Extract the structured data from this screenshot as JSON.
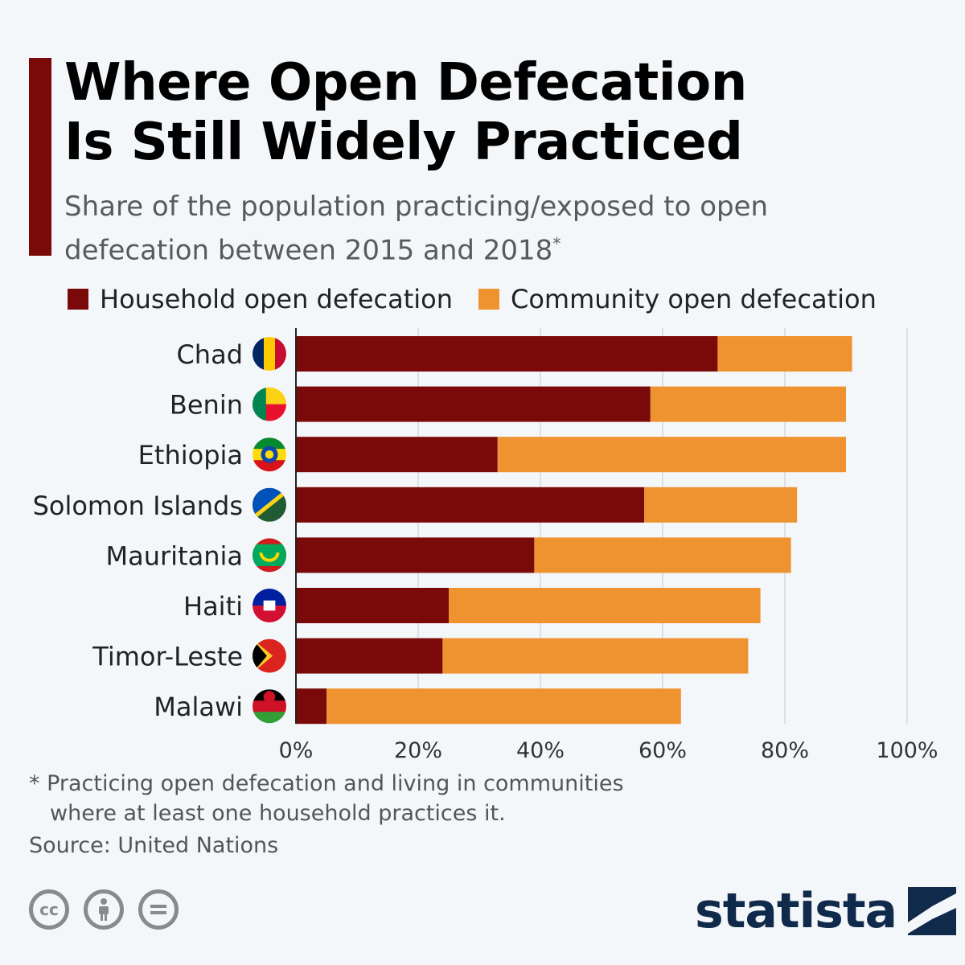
{
  "header": {
    "title_line1": "Where Open Defecation",
    "title_line2": "Is Still Widely Practiced",
    "subtitle_line1": "Share of the population practicing/exposed to open",
    "subtitle_line2": "defecation between 2015 and 2018",
    "subtitle_marker": "*"
  },
  "colors": {
    "household": "#7a0a0a",
    "community": "#ef9230",
    "accent": "#7a0a0a",
    "brand": "#0f2a4a"
  },
  "chart_data": {
    "type": "bar",
    "orientation": "horizontal",
    "stacked": true,
    "categories": [
      "Chad",
      "Benin",
      "Ethiopia",
      "Solomon Islands",
      "Mauritania",
      "Haiti",
      "Timor-Leste",
      "Malawi"
    ],
    "series": [
      {
        "name": "Household open defecation",
        "color": "#7a0a0a",
        "values": [
          69,
          58,
          33,
          57,
          39,
          25,
          24,
          5
        ]
      },
      {
        "name": "Community open defecation",
        "color": "#ef9230",
        "values": [
          22,
          32,
          57,
          25,
          42,
          51,
          50,
          58
        ]
      }
    ],
    "xlim": [
      0,
      100
    ],
    "xticks": [
      0,
      20,
      40,
      60,
      80,
      100
    ],
    "tick_labels": [
      "0%",
      "20%",
      "40%",
      "60%",
      "80%",
      "100%"
    ],
    "grid": true,
    "legend_position": "top-left",
    "flags": [
      "chad-flag-icon",
      "benin-flag-icon",
      "ethiopia-flag-icon",
      "solomon-islands-flag-icon",
      "mauritania-flag-icon",
      "haiti-flag-icon",
      "timor-leste-flag-icon",
      "malawi-flag-icon"
    ]
  },
  "footnote": {
    "line1": "* Practicing open defecation and living in communities",
    "line2": "where at least one household practices it."
  },
  "source": "Source: United Nations",
  "brand": {
    "name": "statista"
  },
  "license_icons": [
    "cc-icon",
    "attribution-icon",
    "no-derivatives-icon"
  ]
}
